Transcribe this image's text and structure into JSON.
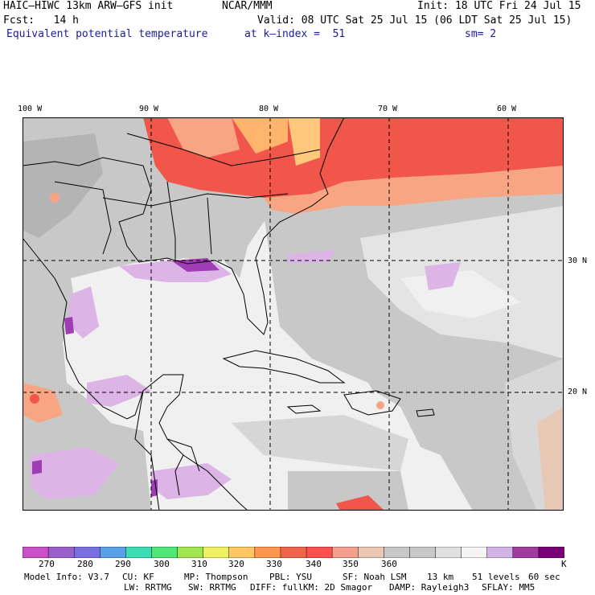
{
  "header": {
    "model": "HAIC–HIWC 13km ARW–GFS init",
    "center": "NCAR/MMM",
    "init": "Init: 18 UTC Fri 24 Jul 15",
    "fcst": "Fcst:   14 h",
    "valid": "Valid: 08 UTC Sat 25 Jul 15 (06 LDT Sat 25 Jul 15)",
    "field": "Equivalent potential temperature",
    "level": "at k–index =  51",
    "smooth": "sm= 2"
  },
  "map": {
    "lon_labels": [
      "100 W",
      "90 W",
      "80 W",
      "70 W",
      "60 W"
    ],
    "lat_labels": [
      "30 N",
      "20 N"
    ],
    "colors": {
      "land_gray": "#c8c8c8",
      "warm_red": "#f0564a",
      "warm_orange": "#f7a582",
      "ocean_light": "#f0f0f0",
      "lavender": "#dcb4e6",
      "purple": "#a03cb4",
      "tan": "#e6c8b4",
      "border": "#000000",
      "grid": "#000000"
    }
  },
  "colorbar": {
    "labels": [
      "270",
      "280",
      "290",
      "300",
      "310",
      "320",
      "330",
      "340",
      "350",
      "360",
      "K"
    ],
    "colors": [
      "#c850c8",
      "#9b5fcc",
      "#7a6fe0",
      "#5aa0e6",
      "#3cdcb4",
      "#50e678",
      "#a0e650",
      "#f0f064",
      "#ffc864",
      "#ff9650",
      "#f0644b",
      "#ff5050",
      "#f5a08c",
      "#ebc8b4",
      "#c8c8c8",
      "#c8c8c8",
      "#e0e0e0",
      "#f5f5f5",
      "#d2b4e6",
      "#a03ca0",
      "#780078"
    ]
  },
  "footer": {
    "line1": [
      "Model Info: V3.7",
      "CU: KF",
      "MP: Thompson",
      "PBL: YSU",
      "SF: Noah LSM",
      "13 km",
      "51 levels",
      "60 sec"
    ],
    "line2": [
      "LW: RRTMG",
      "SW: RRTMG",
      "DIFF: full",
      "KM: 2D Smagor",
      "DAMP: Rayleigh3",
      "SFLAY: MM5"
    ]
  }
}
